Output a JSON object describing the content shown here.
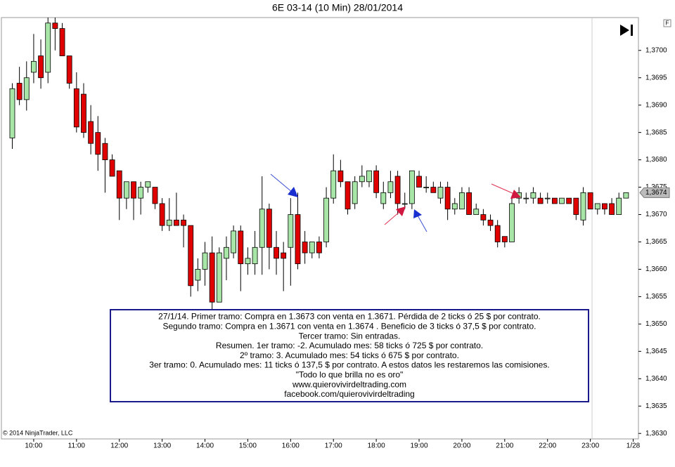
{
  "chart_data": {
    "type": "candlestick",
    "title": "6E 03-14 (10 Min)  28/01/2014",
    "corner_label": "F",
    "copyright": "© 2014 NinjaTrader, LLC",
    "up_color": "#a8e6a8",
    "down_color": "#e00000",
    "grid": false,
    "categories": [
      null,
      null,
      null,
      "10:00",
      null,
      null,
      null,
      null,
      null,
      "11:00",
      null,
      null,
      null,
      null,
      null,
      "12:00",
      null,
      null,
      null,
      null,
      null,
      "13:00",
      null,
      null,
      null,
      null,
      null,
      "14:00",
      null,
      null,
      null,
      null,
      null,
      "15:00",
      null,
      null,
      null,
      null,
      null,
      "16:00",
      null,
      null,
      null,
      null,
      null,
      "17:00",
      null,
      null,
      null,
      null,
      null,
      "18:00",
      null,
      null,
      null,
      null,
      null,
      "19:00",
      null,
      null,
      null,
      null,
      null,
      "20:00",
      null,
      null,
      null,
      null,
      null,
      "21:00",
      null,
      null,
      null,
      null,
      null,
      "22:00",
      null,
      null,
      null,
      null,
      null,
      "23:00",
      null,
      null,
      null,
      null,
      null,
      "1/28"
    ],
    "open": [
      1.3684,
      1.3694,
      1.3691,
      1.3696,
      1.3699,
      1.3696,
      1.3705,
      1.3704,
      1.3699,
      1.3693,
      1.3692,
      1.3687,
      1.3685,
      1.3683,
      1.368,
      1.3678,
      1.3673,
      1.3676,
      1.3673,
      1.3675,
      1.3675,
      1.3672,
      1.3668,
      1.3669,
      1.3669,
      1.3668,
      1.3658,
      1.366,
      1.3663,
      1.3654,
      1.3662,
      1.3663,
      1.3667,
      1.3661,
      1.3661,
      1.3664,
      1.3671,
      1.3664,
      1.3663,
      1.3664,
      1.367,
      1.3665,
      1.3663,
      1.3665,
      1.3665,
      1.3673,
      1.3678,
      1.3676,
      1.3672,
      1.3676,
      1.3676,
      1.3678,
      1.3672,
      1.3674,
      1.3677,
      1.3672,
      1.3672,
      1.3677,
      1.3675,
      1.3675,
      1.3673,
      1.3675,
      1.3671,
      1.3671,
      1.3674,
      1.367,
      1.367,
      1.3669,
      1.3668,
      1.3666,
      1.3665,
      1.3673,
      1.3673,
      1.3673,
      1.3673,
      1.3673,
      1.3673,
      1.3672,
      1.3673,
      1.3673,
      1.3669,
      1.3674,
      1.3671,
      1.3672,
      1.3672,
      1.367,
      1.3673,
      null
    ],
    "high": [
      1.3694,
      1.3697,
      1.3698,
      1.3703,
      1.3702,
      1.3706,
      1.3706,
      1.3705,
      1.3699,
      1.3696,
      1.3694,
      1.369,
      1.3688,
      1.3684,
      1.3681,
      1.3678,
      1.3676,
      1.3676,
      1.3676,
      1.3676,
      1.3675,
      1.3673,
      1.3673,
      1.3674,
      1.367,
      1.3668,
      1.3662,
      1.3665,
      1.3666,
      1.3664,
      1.3666,
      1.3668,
      1.3668,
      1.3664,
      1.3667,
      1.3677,
      1.3672,
      1.3667,
      1.3665,
      1.3673,
      1.3674,
      1.3667,
      1.3665,
      1.3666,
      1.3675,
      1.3681,
      1.368,
      1.3676,
      1.3677,
      1.3679,
      1.3678,
      1.3679,
      1.3676,
      1.3678,
      1.3678,
      1.3674,
      1.3678,
      1.3678,
      1.3677,
      1.3676,
      1.3676,
      1.3676,
      1.3673,
      1.3675,
      1.3675,
      1.3672,
      1.3671,
      1.367,
      1.3669,
      1.3666,
      1.3673,
      1.3675,
      1.3674,
      1.3675,
      1.3674,
      1.3674,
      1.3673,
      1.3673,
      1.3673,
      1.3673,
      1.3675,
      1.3674,
      1.3672,
      1.3672,
      1.3673,
      1.3674,
      1.3674,
      null
    ],
    "low": [
      1.3682,
      1.369,
      1.3689,
      1.3694,
      1.3693,
      1.3694,
      1.37,
      1.3699,
      1.3693,
      1.3685,
      1.3684,
      1.3681,
      1.3678,
      1.3674,
      1.3677,
      1.3669,
      1.3671,
      1.3669,
      1.367,
      1.3674,
      1.3671,
      1.3667,
      1.3667,
      1.3668,
      1.3664,
      1.3655,
      1.3656,
      1.3657,
      1.3652,
      1.3654,
      1.3658,
      1.3662,
      1.3656,
      1.3659,
      1.3659,
      1.3659,
      1.366,
      1.3659,
      1.3656,
      1.3657,
      1.366,
      1.3661,
      1.3662,
      1.3662,
      1.3664,
      1.3672,
      1.3675,
      1.367,
      1.3671,
      1.3675,
      1.3675,
      1.3673,
      1.3671,
      1.3673,
      1.367,
      1.3671,
      1.3671,
      1.3675,
      1.3674,
      1.3674,
      1.3672,
      1.3669,
      1.367,
      1.3671,
      1.367,
      1.367,
      1.3668,
      1.3667,
      1.3664,
      1.3664,
      1.3665,
      1.3672,
      1.3672,
      1.3672,
      1.3672,
      1.3672,
      1.3672,
      1.3672,
      1.3672,
      1.3669,
      1.3668,
      1.3671,
      1.367,
      1.367,
      1.367,
      1.367,
      1.3673,
      null
    ],
    "close": [
      1.3693,
      1.3691,
      1.3695,
      1.3698,
      1.3695,
      1.3705,
      1.3704,
      1.3699,
      1.3694,
      1.3686,
      1.3685,
      1.3683,
      1.3681,
      1.368,
      1.3677,
      1.3673,
      1.3676,
      1.3673,
      1.3675,
      1.3676,
      1.3672,
      1.3668,
      1.3669,
      1.3668,
      1.3668,
      1.3657,
      1.366,
      1.3663,
      1.3654,
      1.3663,
      1.3664,
      1.3667,
      1.3661,
      1.3662,
      1.3664,
      1.3671,
      1.3664,
      1.3662,
      1.3662,
      1.367,
      1.3661,
      1.3663,
      1.3665,
      1.3663,
      1.3673,
      1.3678,
      1.3676,
      1.3671,
      1.3676,
      1.3677,
      1.3678,
      1.3674,
      1.3674,
      1.3676,
      1.3672,
      1.3672,
      1.3678,
      1.3675,
      1.3675,
      1.3674,
      1.3675,
      1.3671,
      1.3672,
      1.3674,
      1.367,
      1.3671,
      1.3669,
      1.3668,
      1.3665,
      1.3665,
      1.3672,
      1.3674,
      1.3673,
      1.3674,
      1.3672,
      1.3673,
      1.3672,
      1.3673,
      1.3672,
      1.367,
      1.3674,
      1.3671,
      1.3672,
      1.3671,
      1.367,
      1.3673,
      1.3674,
      null
    ],
    "ylim": [
      1.3629,
      1.3706
    ],
    "yticks": [
      {
        "value": 1.363,
        "label": "1,3630"
      },
      {
        "value": 1.3635,
        "label": "1,3635"
      },
      {
        "value": 1.364,
        "label": "1,3640"
      },
      {
        "value": 1.3645,
        "label": "1,3645"
      },
      {
        "value": 1.365,
        "label": "1,3650"
      },
      {
        "value": 1.3655,
        "label": "1,3655"
      },
      {
        "value": 1.366,
        "label": "1,3660"
      },
      {
        "value": 1.3665,
        "label": "1,3665"
      },
      {
        "value": 1.367,
        "label": "1,3670"
      },
      {
        "value": 1.3675,
        "label": "1,3675"
      },
      {
        "value": 1.368,
        "label": "1,3680"
      },
      {
        "value": 1.3685,
        "label": "1,3685"
      },
      {
        "value": 1.369,
        "label": "1,3690"
      },
      {
        "value": 1.3695,
        "label": "1,3695"
      },
      {
        "value": 1.37,
        "label": "1,3700"
      }
    ],
    "last_price": {
      "value": 1.3674,
      "label": "1,3674"
    },
    "annotation": [
      "27/1/14. Primer tramo: Compra en 1.3673 con venta en 1.3671. Pérdida de 2 ticks ó 25 $ por contrato.",
      "Segundo tramo: Compra en 1.3671 con venta en 1.3674 . Beneficio de 3 ticks ó 37,5 $ por contrato.",
      "Tercer tramo: Sin entradas.",
      "Resumen. 1er tramo: -2. Acumulado mes: 58 ticks ó 725 $ por contrato.",
      "2º tramo: 3. Acumulado mes: 54 ticks ó 675 $ por contrato.",
      "3er tramo: 0. Acumulado mes: 11 ticks ó 137,5 $ por contrato. A estos datos les restaremos las comisiones.",
      "\"Todo lo que brilla no es oro\"",
      "www.quierovivirdeltrading.com",
      "facebook.com/quierovivirdeltrading"
    ]
  }
}
